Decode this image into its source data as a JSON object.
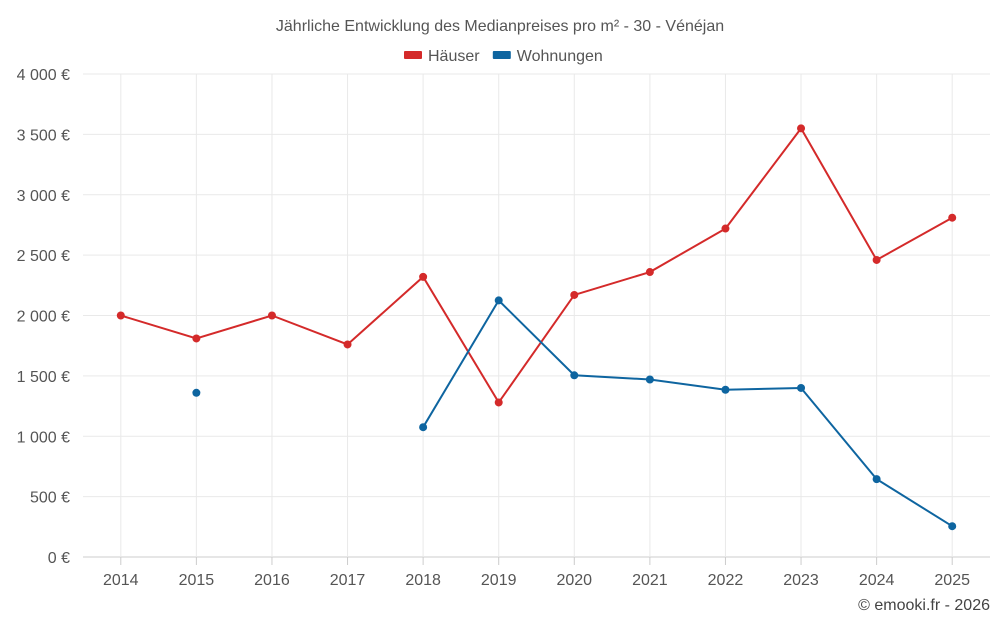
{
  "chart_data": {
    "type": "line",
    "title": "Jährliche Entwicklung des Medianpreises pro m² - 30 - Vénéjan",
    "categories": [
      "2014",
      "2015",
      "2016",
      "2017",
      "2018",
      "2019",
      "2020",
      "2021",
      "2022",
      "2023",
      "2024",
      "2025"
    ],
    "y_ticks": [
      0,
      500,
      1000,
      1500,
      2000,
      2500,
      3000,
      3500,
      4000
    ],
    "y_tick_labels": [
      "0 €",
      "500 €",
      "1 000 €",
      "1 500 €",
      "2 000 €",
      "2 500 €",
      "3 000 €",
      "3 500 €",
      "4 000 €"
    ],
    "ylim": [
      0,
      4000
    ],
    "grid": true,
    "legend_position": "top-center",
    "series": [
      {
        "name": "Häuser",
        "color": "#d42a2a",
        "values": [
          2000,
          1810,
          2000,
          1760,
          2320,
          1280,
          2170,
          2360,
          2720,
          3550,
          2460,
          2810
        ]
      },
      {
        "name": "Wohnungen",
        "color": "#0e65a0",
        "values": [
          null,
          1360,
          null,
          null,
          1075,
          2125,
          1505,
          1470,
          1385,
          1400,
          645,
          255
        ]
      }
    ]
  },
  "credit": "© emooki.fr - 2026"
}
